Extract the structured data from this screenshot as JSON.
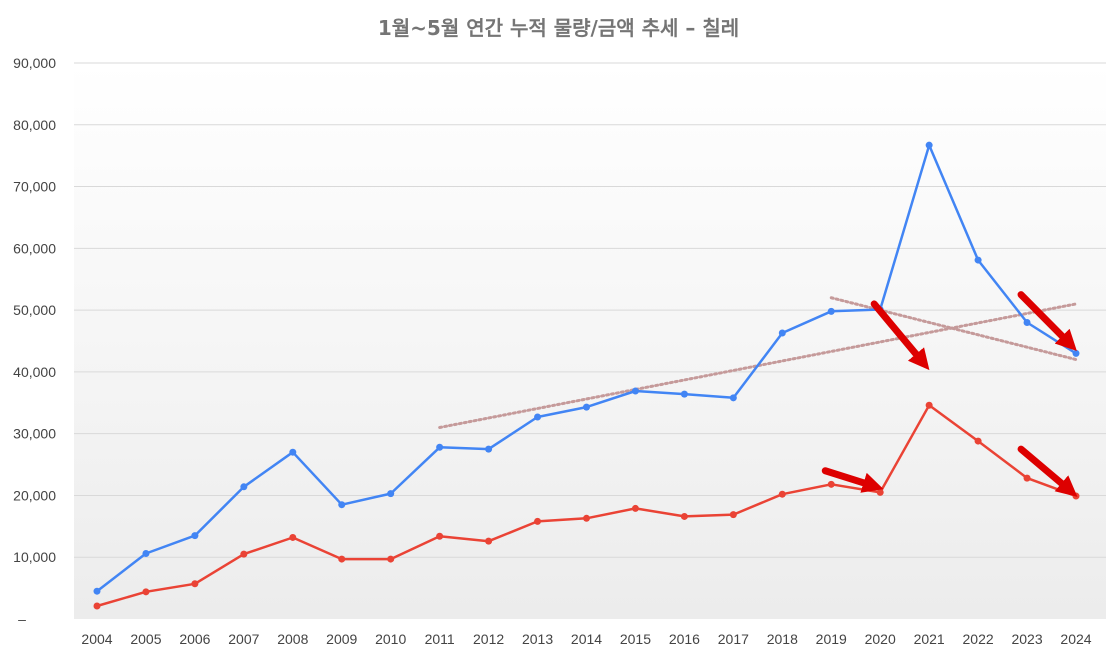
{
  "chart_data": {
    "type": "line",
    "title": "1월~5월 연간 누적 물량/금액 추세 – 칠레",
    "xlabel": "",
    "ylabel": "",
    "categories": [
      "2004",
      "2005",
      "2006",
      "2007",
      "2008",
      "2009",
      "2010",
      "2011",
      "2012",
      "2013",
      "2014",
      "2015",
      "2016",
      "2017",
      "2018",
      "2019",
      "2020",
      "2021",
      "2022",
      "2023",
      "2024"
    ],
    "ylim": [
      0,
      90000
    ],
    "ytick_labels": [
      "–",
      "10,000",
      "20,000",
      "30,000",
      "40,000",
      "50,000",
      "60,000",
      "70,000",
      "80,000",
      "90,000"
    ],
    "grid": true,
    "legend": "none",
    "series": [
      {
        "color": "#4285f4",
        "values": [
          4500,
          10600,
          13500,
          21400,
          27000,
          18500,
          20300,
          27800,
          27500,
          32700,
          34300,
          36900,
          36400,
          35800,
          46300,
          49800,
          50100,
          76700,
          58100,
          48000,
          43000
        ]
      },
      {
        "color": "#ea4335",
        "values": [
          2100,
          4400,
          5700,
          10500,
          13200,
          9700,
          9700,
          13400,
          12600,
          15800,
          16300,
          17900,
          16600,
          16900,
          20200,
          21800,
          20500,
          34600,
          28800,
          22800,
          19900
        ]
      }
    ],
    "trendlines": [
      {
        "color": "#c59a9a",
        "x": [
          "2011",
          "2024"
        ],
        "y": [
          31000,
          51000
        ]
      },
      {
        "color": "#c59a9a",
        "x": [
          "2019",
          "2024"
        ],
        "y": [
          52000,
          42000
        ]
      }
    ],
    "annotation_arrows": [
      {
        "color": "#dd0000",
        "from": [
          "2020",
          51000
        ],
        "to": [
          "2021",
          41500
        ]
      },
      {
        "color": "#dd0000",
        "from": [
          "2023",
          52500
        ],
        "to": [
          "2024",
          44500
        ]
      },
      {
        "color": "#dd0000",
        "from": [
          "2019",
          24000
        ],
        "to": [
          "2020",
          21500
        ]
      },
      {
        "color": "#dd0000",
        "from": [
          "2023",
          27500
        ],
        "to": [
          "2024",
          20800
        ]
      }
    ]
  }
}
